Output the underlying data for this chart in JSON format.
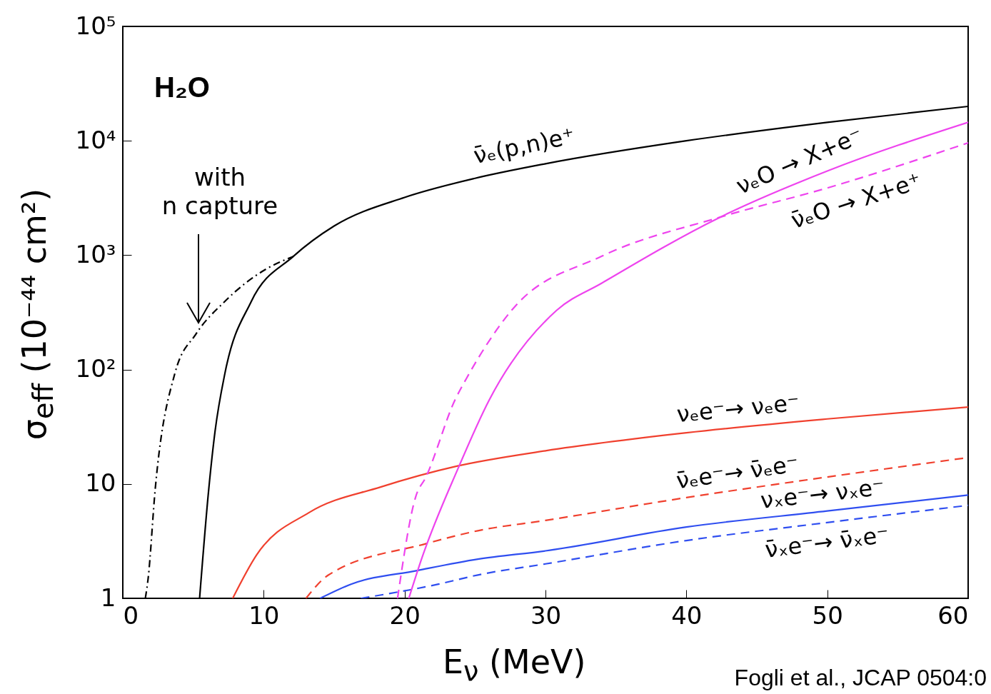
{
  "chart_data": {
    "type": "line",
    "title": "H₂O",
    "xlabel": "E$_{ν}$ (MeV)",
    "ylabel": "σ$_{eff}$ (10⁻⁴⁴ cm²)",
    "log": "y",
    "grid": false,
    "marker": "none",
    "xlim": [
      0,
      60
    ],
    "xticks": [
      0,
      10,
      20,
      30,
      40,
      50,
      60
    ],
    "ylim": [
      1,
      100000
    ],
    "yticks": [
      1,
      10,
      {
        "value": 100,
        "label": "10²"
      },
      {
        "value": 1000,
        "label": "10³"
      },
      {
        "value": 10000,
        "label": "10⁴"
      },
      {
        "value": 100000,
        "label": "10⁵"
      }
    ],
    "series": [
      {
        "color": "#000000",
        "line_style": "dashdot",
        "x": [
          1.6,
          1.8,
          2.3,
          3.7,
          5.2,
          7.2,
          10.2,
          12.1
        ],
        "values": [
          1,
          1.5,
          9,
          93,
          205,
          390,
          760,
          975
        ]
      },
      {
        "name": "ν̄ₑ(p,n)e⁺",
        "color": "#000000",
        "line_style": "solid",
        "x": [
          5.45,
          6.1,
          6.55,
          7.25,
          9.1,
          12.1,
          15,
          20,
          25,
          30,
          40,
          50,
          60
        ],
        "values": [
          1,
          9,
          29,
          93,
          390,
          975,
          1800,
          3200,
          4700,
          6300,
          10000,
          14500,
          20000
        ]
      },
      {
        "name": "νₑe⁻→ νₑe⁻",
        "color": "#f0402e",
        "line_style": "solid",
        "x": [
          7.8,
          9.5,
          13.2,
          18.3,
          23.7,
          30,
          40,
          50,
          60
        ],
        "values": [
          1,
          2.4,
          5.6,
          9.4,
          14.3,
          19.5,
          28,
          37,
          47
        ]
      },
      {
        "name": "ν̄ₑe⁻→ ν̄ₑe⁻",
        "color": "#f0402e",
        "line_style": "dashed",
        "x": [
          13,
          14.6,
          21.5,
          25.2,
          30,
          40,
          50,
          60
        ],
        "values": [
          1,
          1.6,
          3,
          3.9,
          4.8,
          7.6,
          11.5,
          17
        ]
      },
      {
        "name": "νₓe⁻→ νₓe⁻",
        "color": "#2f4ef0",
        "line_style": "solid",
        "x": [
          14,
          16.2,
          20.9,
          25.2,
          30,
          40,
          50,
          60
        ],
        "values": [
          1,
          1.33,
          1.75,
          2.2,
          2.6,
          4.2,
          5.8,
          8
        ]
      },
      {
        "name": "ν̄ₓe⁻→ ν̄ₓe⁻",
        "color": "#2f4ef0",
        "line_style": "dashed",
        "x": [
          16.9,
          22.4,
          25.2,
          30,
          40,
          50,
          60
        ],
        "values": [
          1,
          1.33,
          1.6,
          2,
          3.2,
          4.6,
          6.5
        ]
      },
      {
        "name": "ν̄ₑO → X+e⁺",
        "color": "#ee44ee",
        "line_style": "dashed",
        "x": [
          19.5,
          20.8,
          21.5,
          23.6,
          24.4,
          27.6,
          34,
          42.4,
          50.1,
          60
        ],
        "values": [
          1,
          7.8,
          11.4,
          55,
          84,
          330,
          980,
          2150,
          3900,
          9600
        ]
      },
      {
        "name": "νₑO → X+e⁻",
        "color": "#ee44ee",
        "line_style": "solid",
        "x": [
          20.3,
          21.2,
          23.8,
          26,
          30.8,
          34,
          42.4,
          50.1,
          60
        ],
        "values": [
          1,
          2.2,
          13.7,
          54,
          330,
          570,
          2150,
          5500,
          14500
        ]
      }
    ],
    "annotations": [
      "with\nn capture",
      "Fogli et al., JCAP 0504:0"
    ]
  }
}
